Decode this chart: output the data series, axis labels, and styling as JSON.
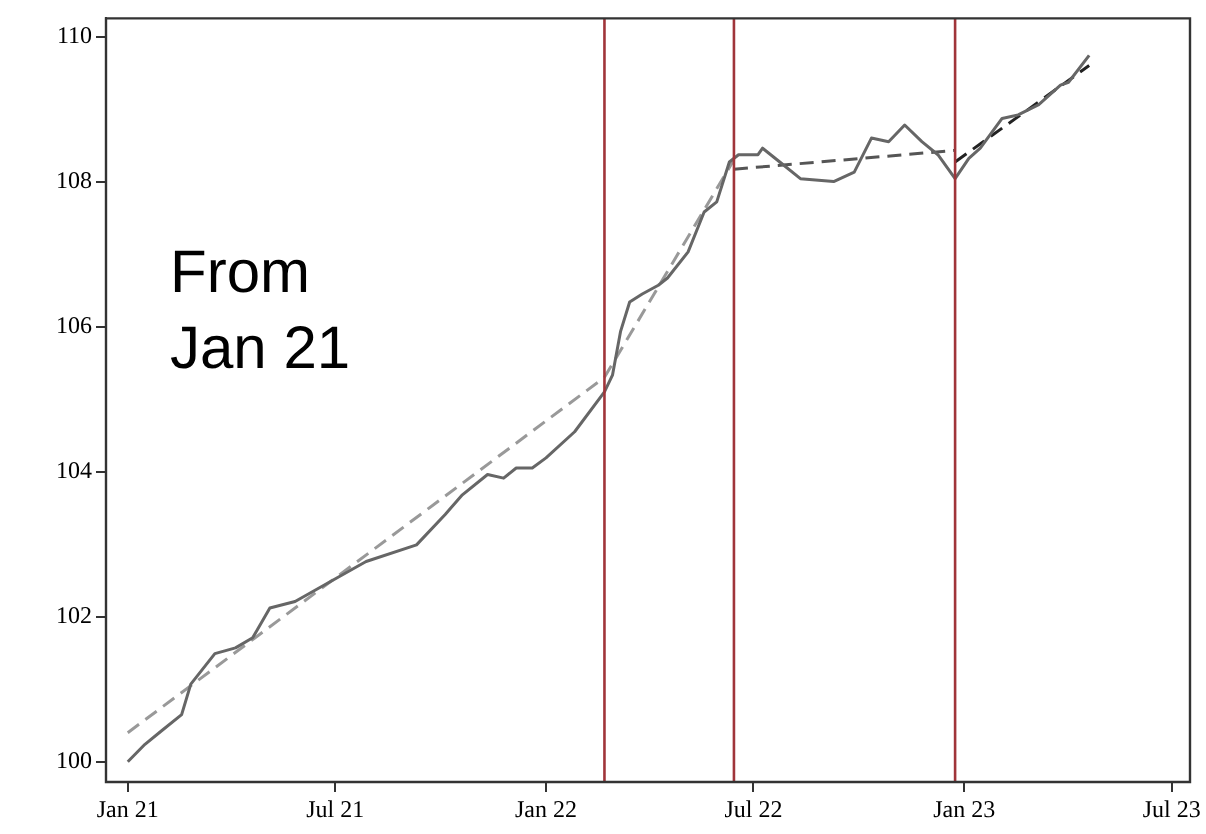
{
  "chart_data": {
    "type": "line",
    "annotations": [
      "From Jan 21"
    ],
    "xlim": [
      "2020-12-13",
      "2023-07-17"
    ],
    "xticks": [
      {
        "value": "2021-01-01",
        "label": "Jan 21"
      },
      {
        "value": "2021-07-01",
        "label": "Jul 21"
      },
      {
        "value": "2022-01-01",
        "label": "Jan 22"
      },
      {
        "value": "2022-07-01",
        "label": "Jul 22"
      },
      {
        "value": "2023-01-01",
        "label": "Jan 23"
      },
      {
        "value": "2023-07-01",
        "label": "Jul 23"
      }
    ],
    "ylim": [
      99.72,
      110.25
    ],
    "yticks": [
      100,
      102,
      104,
      106,
      108,
      110
    ],
    "ref_lines": [
      {
        "axis": "x",
        "value": "2022-02-21",
        "color": "#a0353a"
      },
      {
        "axis": "x",
        "value": "2022-06-14",
        "color": "#a0353a"
      },
      {
        "axis": "x",
        "value": "2022-12-24",
        "color": "#a0353a"
      }
    ],
    "series": [
      {
        "color": "#666666",
        "line_style": "solid",
        "x": [
          "2021-01-01",
          "2021-01-16",
          "2021-01-30",
          "2021-02-17",
          "2021-02-25",
          "2021-03-18",
          "2021-04-05",
          "2021-04-20",
          "2021-05-05",
          "2021-05-27",
          "2021-07-02",
          "2021-07-28",
          "2021-09-10",
          "2021-10-05",
          "2021-10-20",
          "2021-11-11",
          "2021-11-25",
          "2021-12-06",
          "2021-12-20",
          "2022-01-01",
          "2022-01-26",
          "2022-02-21",
          "2022-02-28",
          "2022-03-07",
          "2022-03-15",
          "2022-03-26",
          "2022-04-09",
          "2022-04-17",
          "2022-05-05",
          "2022-05-19",
          "2022-05-30",
          "2022-06-10",
          "2022-06-18",
          "2022-07-05",
          "2022-07-09",
          "2022-07-24",
          "2022-08-11",
          "2022-09-09",
          "2022-09-27",
          "2022-10-12",
          "2022-10-27",
          "2022-11-10",
          "2022-11-25",
          "2022-12-09",
          "2022-12-24",
          "2023-01-05",
          "2023-01-15",
          "2023-02-03",
          "2023-02-17",
          "2023-03-07",
          "2023-03-26",
          "2023-04-02",
          "2023-04-20"
        ],
        "values": [
          100.0,
          100.24,
          100.42,
          100.65,
          101.07,
          101.49,
          101.57,
          101.71,
          102.12,
          102.21,
          102.53,
          102.76,
          102.99,
          103.41,
          103.68,
          103.96,
          103.91,
          104.05,
          104.05,
          104.19,
          104.55,
          105.1,
          105.33,
          105.93,
          106.34,
          106.45,
          106.57,
          106.67,
          107.03,
          107.58,
          107.72,
          108.27,
          108.37,
          108.37,
          108.46,
          108.27,
          108.04,
          108.0,
          108.13,
          108.6,
          108.55,
          108.78,
          108.55,
          108.37,
          108.04,
          108.32,
          108.46,
          108.87,
          108.92,
          109.06,
          109.33,
          109.37,
          109.74
        ]
      },
      {
        "color": "#999999",
        "line_style": "dashed",
        "x": [
          "2021-01-01",
          "2022-02-21",
          "2022-06-14"
        ],
        "values": [
          100.4,
          105.3,
          108.3
        ]
      },
      {
        "color": "#555555",
        "line_style": "dashed",
        "x": [
          "2022-06-14",
          "2022-12-24"
        ],
        "values": [
          108.17,
          108.43
        ]
      },
      {
        "color": "#222222",
        "line_style": "dashed",
        "x": [
          "2022-12-24",
          "2023-04-20"
        ],
        "values": [
          108.27,
          109.6
        ]
      }
    ]
  }
}
